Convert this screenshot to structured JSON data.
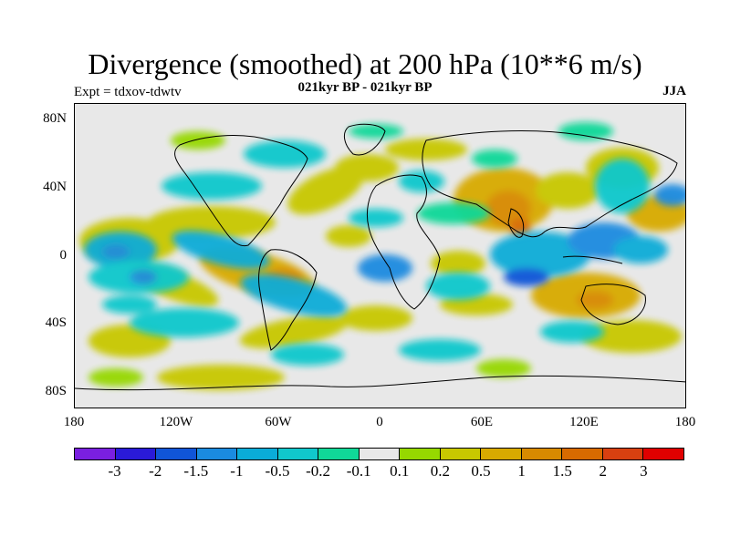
{
  "header": {
    "title": "Divergence (smoothed) at 200 hPa (10**6 m/s)",
    "subtitle": "021kyr BP - 021kyr BP",
    "experiment": "Expt = tdxov-tdwtv",
    "season": "JJA"
  },
  "map": {
    "projection": "cylindrical equidistant",
    "lat_range": [
      -90,
      90
    ],
    "lon_range": [
      -180,
      180
    ],
    "lat_labels": [
      "80N",
      "40N",
      "0",
      "40S",
      "80S"
    ],
    "lon_labels": [
      "180",
      "120W",
      "60W",
      "0",
      "60E",
      "120E",
      "180"
    ],
    "background_color": "#e8e8e8",
    "coastline_color": "#000000"
  },
  "colorbar": {
    "colors": [
      "#7a1fe0",
      "#2a1ad8",
      "#1055d8",
      "#1a8be0",
      "#0aacd8",
      "#10c8cc",
      "#10d898",
      "#e8e8e8",
      "#96d800",
      "#c8c800",
      "#d8aa00",
      "#d88a00",
      "#d86a00",
      "#d84010",
      "#e00000"
    ],
    "labels": [
      "-3",
      "-2",
      "-1.5",
      "-1",
      "-0.5",
      "-0.2",
      "-0.1",
      "0.1",
      "0.2",
      "0.5",
      "1",
      "1.5",
      "2",
      "3"
    ]
  }
}
